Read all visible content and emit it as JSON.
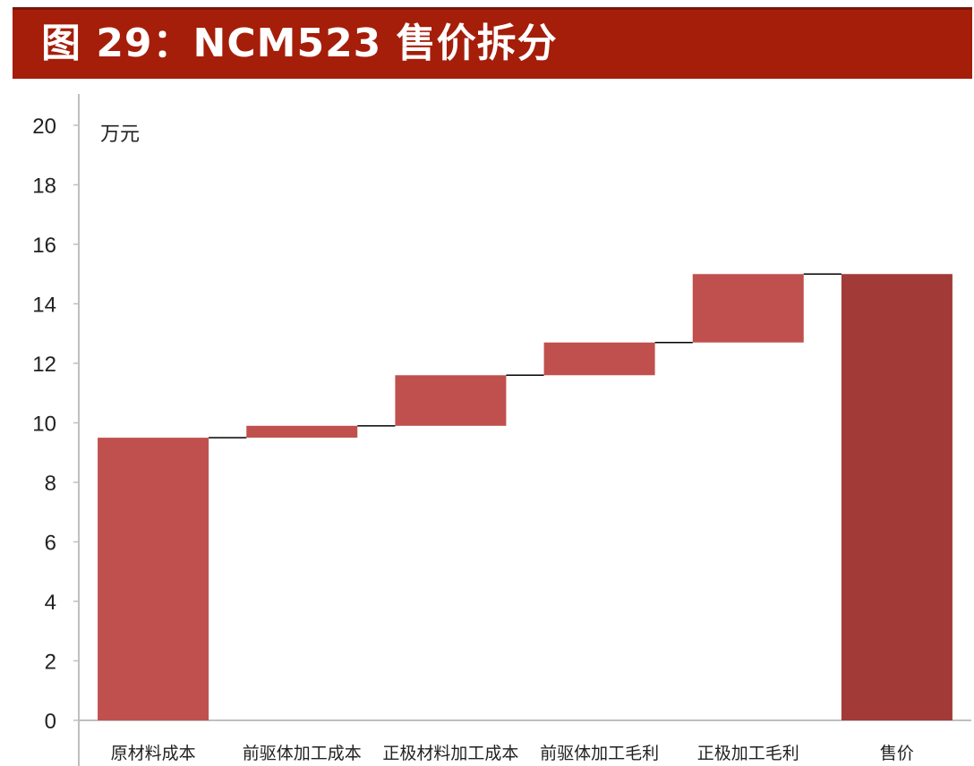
{
  "title": "图 29：NCM523 售价拆分",
  "chart_data": {
    "type": "bar",
    "subtype": "waterfall",
    "categories": [
      "原材料成本",
      "前驱体加工成本",
      "正极材料加工成本",
      "前驱体加工毛利",
      "正极加工毛利",
      "售价"
    ],
    "values": [
      9.5,
      0.4,
      1.7,
      1.1,
      2.3,
      15.0
    ],
    "bar_bottoms": [
      0,
      9.5,
      9.9,
      11.6,
      12.7,
      0
    ],
    "bar_tops": [
      9.5,
      9.9,
      11.6,
      12.7,
      15.0,
      15.0
    ],
    "is_total": [
      false,
      false,
      false,
      false,
      false,
      true
    ],
    "unit_label": "万元",
    "ylim": [
      0,
      20
    ],
    "yticks": [
      0,
      2,
      4,
      6,
      8,
      10,
      12,
      14,
      16,
      18,
      20
    ],
    "grid": false,
    "legend": "none",
    "colors": {
      "step": "#c0504d",
      "total": "#a23a38",
      "connector": "#000000",
      "axis": "#bfbfbf"
    }
  }
}
